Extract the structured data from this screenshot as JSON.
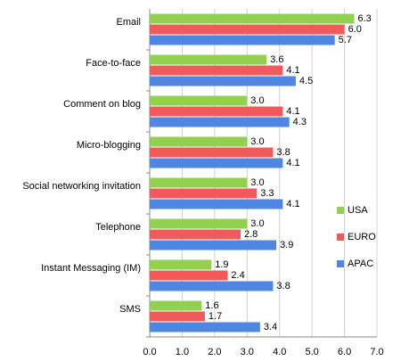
{
  "chart_data": {
    "type": "barh",
    "categories": [
      "Email",
      "Face-to-face",
      "Comment on blog",
      "Micro-blogging",
      "Social networking invitation",
      "Telephone",
      "Instant Messaging (IM)",
      "SMS"
    ],
    "series": [
      {
        "name": "USA",
        "color": "#92d050",
        "values": [
          6.3,
          3.6,
          3.0,
          3.0,
          3.0,
          3.0,
          1.9,
          1.6
        ],
        "value_labels": [
          "6.3",
          "3.6",
          "3.0",
          "3.0",
          "3.0",
          "3.0",
          "1.9",
          "1.6"
        ]
      },
      {
        "name": "EURO",
        "color": "#f05a5a",
        "values": [
          6.0,
          4.1,
          4.1,
          3.8,
          3.3,
          2.8,
          2.4,
          1.7
        ],
        "value_labels": [
          "6.0",
          "4.1",
          "4.1",
          "3.8",
          "3.3",
          "2.8",
          "2.4",
          "1.7"
        ]
      },
      {
        "name": "APAC",
        "color": "#4f86e0",
        "values": [
          5.7,
          4.5,
          4.3,
          4.1,
          4.1,
          3.9,
          3.8,
          3.4
        ],
        "value_labels": [
          "5.7",
          "4.5",
          "4.3",
          "4.1",
          "4.1",
          "3.9",
          "3.8",
          "3.4"
        ]
      }
    ],
    "xlim": [
      0,
      7
    ],
    "xticks": [
      {
        "value": 0,
        "label": "0.0"
      },
      {
        "value": 1,
        "label": "1.0"
      },
      {
        "value": 2,
        "label": "2.0"
      },
      {
        "value": 3,
        "label": "3.0"
      },
      {
        "value": 4,
        "label": "4.0"
      },
      {
        "value": 5,
        "label": "5.0"
      },
      {
        "value": 6,
        "label": "6.0"
      },
      {
        "value": 7,
        "label": "7.0"
      }
    ],
    "grid": true,
    "legend": "right"
  }
}
